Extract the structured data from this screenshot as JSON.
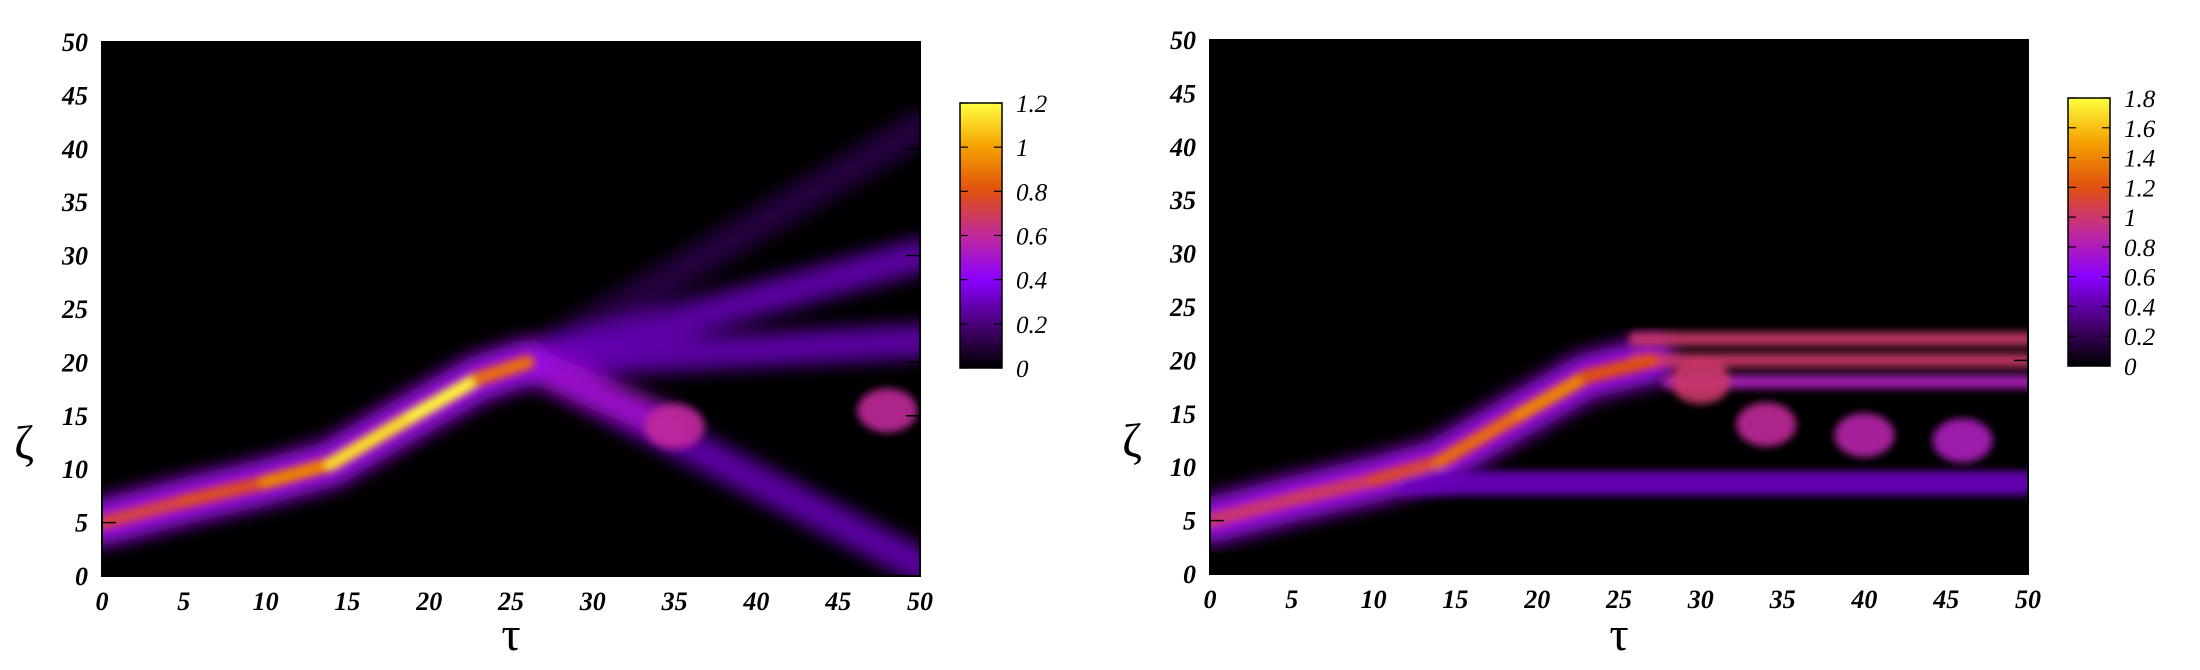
{
  "chart_data": [
    {
      "type": "heatmap",
      "title": "",
      "xlabel": "τ",
      "ylabel": "ζ",
      "xlim": [
        0,
        50
      ],
      "ylim": [
        0,
        50
      ],
      "xticks": [
        "0",
        "5",
        "10",
        "15",
        "20",
        "25",
        "30",
        "35",
        "40",
        "45",
        "50"
      ],
      "yticks": [
        "0",
        "5",
        "10",
        "15",
        "20",
        "25",
        "30",
        "35",
        "40",
        "45",
        "50"
      ],
      "colorbar": {
        "range": [
          0,
          1.2
        ],
        "ticks": [
          "0",
          "0.2",
          "0.4",
          "0.6",
          "0.8",
          "1",
          "1.2"
        ],
        "colormap": [
          "#000000",
          "#4a0078",
          "#8a00ff",
          "#c02a9a",
          "#e05010",
          "#f5a000",
          "#ffff40"
        ]
      },
      "grid": false,
      "features": {
        "main_beam": [
          {
            "tau": 0,
            "zeta": 5,
            "amplitude": 0.7
          },
          {
            "tau": 5,
            "zeta": 7,
            "amplitude": 0.75
          },
          {
            "tau": 10,
            "zeta": 8.8,
            "amplitude": 0.8
          },
          {
            "tau": 14,
            "zeta": 10.5,
            "amplitude": 1.05
          },
          {
            "tau": 19,
            "zeta": 15,
            "amplitude": 1.2
          },
          {
            "tau": 23,
            "zeta": 18.5,
            "amplitude": 1.15
          },
          {
            "tau": 26,
            "zeta": 20,
            "amplitude": 0.6
          }
        ],
        "scattered_beams": [
          {
            "tau_start": 26,
            "zeta_start": 20,
            "tau_end": 50,
            "zeta_end": 42,
            "amplitude": 0.12
          },
          {
            "tau_start": 26,
            "zeta_start": 20,
            "tau_end": 50,
            "zeta_end": 30,
            "amplitude": 0.3
          },
          {
            "tau_start": 26,
            "zeta_start": 20,
            "tau_end": 50,
            "zeta_end": 22,
            "amplitude": 0.3
          },
          {
            "tau_start": 26,
            "zeta_start": 20,
            "tau_end": 50,
            "zeta_end": 1,
            "amplitude": 0.3
          },
          {
            "tau_start": 26,
            "zeta_start": 20,
            "tau_end": 35,
            "zeta_end": 14,
            "amplitude": 0.5
          }
        ],
        "hot_spots": [
          {
            "tau": 35,
            "zeta": 14,
            "amplitude": 0.6
          },
          {
            "tau": 48,
            "zeta": 15.5,
            "amplitude": 0.6
          }
        ]
      }
    },
    {
      "type": "heatmap",
      "title": "",
      "xlabel": "τ",
      "ylabel": "ζ",
      "xlim": [
        0,
        50
      ],
      "ylim": [
        0,
        50
      ],
      "xticks": [
        "0",
        "5",
        "10",
        "15",
        "20",
        "25",
        "30",
        "35",
        "40",
        "45",
        "50"
      ],
      "yticks": [
        "0",
        "5",
        "10",
        "15",
        "20",
        "25",
        "30",
        "35",
        "40",
        "45",
        "50"
      ],
      "colorbar": {
        "range": [
          0,
          1.8
        ],
        "ticks": [
          "0",
          "0.2",
          "0.4",
          "0.6",
          "0.8",
          "1",
          "1.2",
          "1.4",
          "1.6",
          "1.8"
        ],
        "colormap": [
          "#000000",
          "#4a0078",
          "#8a00ff",
          "#c02a9a",
          "#e05010",
          "#f5a000",
          "#ffff40"
        ]
      },
      "grid": false,
      "features": {
        "main_beam": [
          {
            "tau": 0,
            "zeta": 5,
            "amplitude": 1.0
          },
          {
            "tau": 5,
            "zeta": 7,
            "amplitude": 1.0
          },
          {
            "tau": 10,
            "zeta": 8.8,
            "amplitude": 1.05
          },
          {
            "tau": 14,
            "zeta": 10.5,
            "amplitude": 1.2
          },
          {
            "tau": 19,
            "zeta": 15,
            "amplitude": 1.4
          },
          {
            "tau": 23,
            "zeta": 18.5,
            "amplitude": 1.4
          },
          {
            "tau": 27,
            "zeta": 20,
            "amplitude": 1.0
          }
        ],
        "guided_bands": [
          {
            "zeta": 22,
            "tau_start": 26,
            "tau_end": 50,
            "amplitude": 1.0
          },
          {
            "zeta": 20,
            "tau_start": 26,
            "tau_end": 50,
            "amplitude": 1.0
          },
          {
            "zeta": 18,
            "tau_start": 28,
            "tau_end": 50,
            "amplitude": 0.8
          },
          {
            "zeta": 9,
            "tau_start": 12,
            "tau_end": 50,
            "amplitude": 0.45
          },
          {
            "zeta": 8,
            "tau_start": 12,
            "tau_end": 50,
            "amplitude": 0.45
          }
        ],
        "hot_spots": [
          {
            "tau": 30,
            "zeta": 18,
            "amplitude": 1.0
          },
          {
            "tau": 34,
            "zeta": 14,
            "amplitude": 0.9
          },
          {
            "tau": 40,
            "zeta": 13,
            "amplitude": 0.85
          },
          {
            "tau": 46,
            "zeta": 12.5,
            "amplitude": 0.8
          }
        ]
      }
    }
  ]
}
